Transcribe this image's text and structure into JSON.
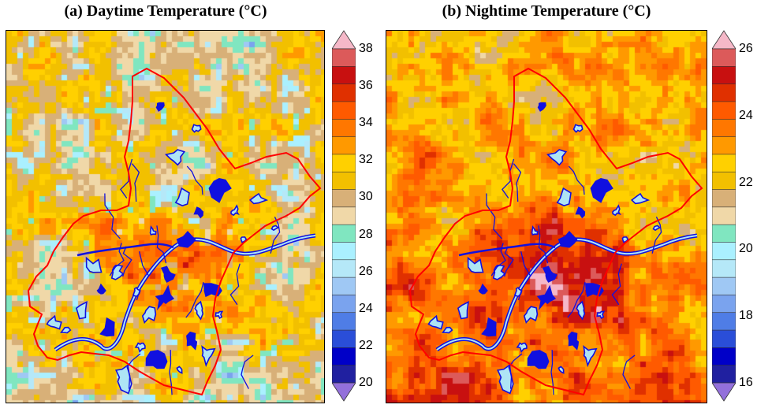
{
  "panels": [
    {
      "id": "a",
      "title": "(a) Daytime Temperature (°C)",
      "colorbar": {
        "min": 20,
        "max": 38,
        "step": 1,
        "ticks": [
          "38",
          "36",
          "34",
          "32",
          "30",
          "28",
          "26",
          "24",
          "22",
          "20"
        ],
        "colors": [
          "#9370db",
          "#2020a0",
          "#0000c8",
          "#2a4ed8",
          "#4f7de6",
          "#7aa3ee",
          "#9fc8f4",
          "#b5e8f8",
          "#aaf0ff",
          "#80e6c0",
          "#f0d8a8",
          "#d8b078",
          "#f2c000",
          "#ffd000",
          "#ff9900",
          "#ff7700",
          "#ff5a00",
          "#e03000",
          "#c81010",
          "#dc5a5a",
          "#f5b8c8"
        ]
      },
      "field": {
        "base": 29.8,
        "urban_peak": 35.5,
        "water": 25.5
      }
    },
    {
      "id": "b",
      "title": "(b) Nightime Temperature (°C)",
      "colorbar": {
        "min": 16,
        "max": 26,
        "step": 0.5,
        "ticks": [
          "26",
          "24",
          "22",
          "20",
          "18",
          "16"
        ],
        "colors": [
          "#9370db",
          "#2020a0",
          "#0000c8",
          "#2a4ed8",
          "#4f7de6",
          "#7aa3ee",
          "#9fc8f4",
          "#b5e8f8",
          "#aaf0ff",
          "#80e6c0",
          "#f0d8a8",
          "#d8b078",
          "#f2c000",
          "#ffd000",
          "#ff9900",
          "#ff7700",
          "#ff5a00",
          "#e03000",
          "#c81010",
          "#dc5a5a",
          "#f5b8c8"
        ]
      },
      "field": {
        "base": 22.6,
        "urban_peak": 25.8,
        "water": 20.5
      }
    }
  ],
  "legend_colors": {
    "boundary": "#ff0000",
    "water": "#1010e0"
  }
}
